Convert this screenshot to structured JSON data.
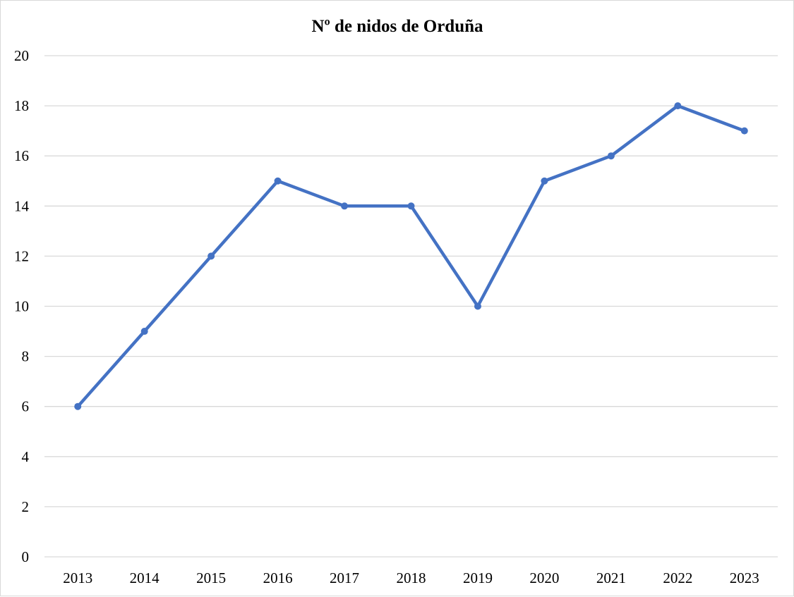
{
  "chart_data": {
    "type": "line",
    "title": "Nº de nidos de Orduña",
    "xlabel": "",
    "ylabel": "",
    "categories": [
      "2013",
      "2014",
      "2015",
      "2016",
      "2017",
      "2018",
      "2019",
      "2020",
      "2021",
      "2022",
      "2023"
    ],
    "series": [
      {
        "values": [
          6,
          9,
          12,
          15,
          14,
          14,
          10,
          15,
          16,
          18,
          17
        ],
        "color": "#4472c4",
        "markers": true
      }
    ],
    "ylim": [
      0,
      20
    ],
    "yticks": [
      0,
      2,
      4,
      6,
      8,
      10,
      12,
      14,
      16,
      18,
      20
    ],
    "grid": "horizontal",
    "gridColor": "#d9d9d9",
    "legend": "none"
  }
}
